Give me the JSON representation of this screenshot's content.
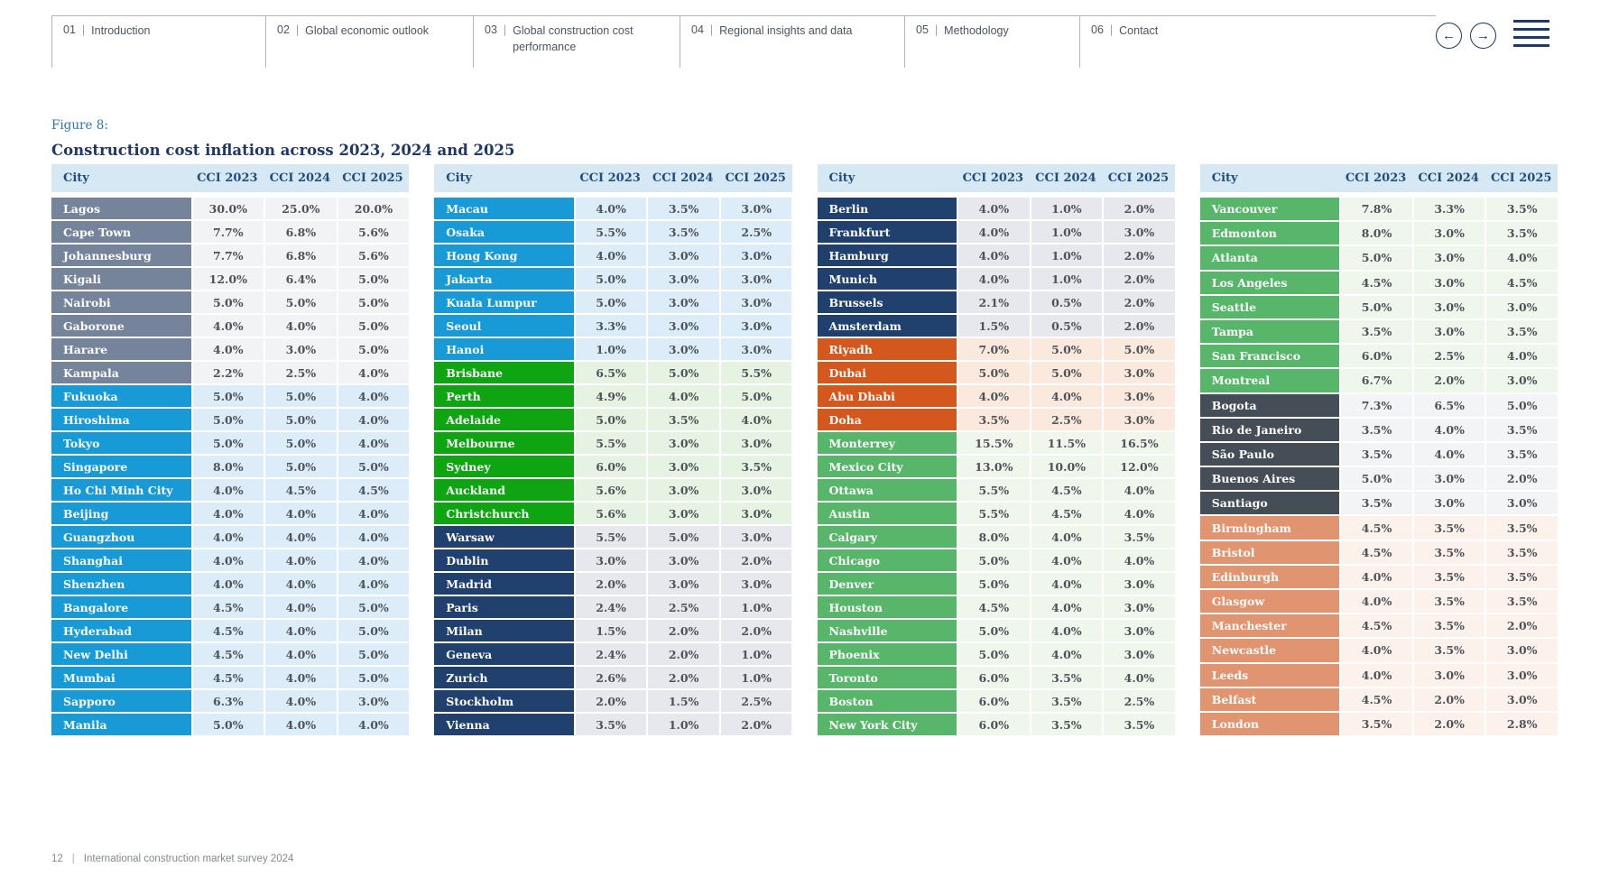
{
  "nav": {
    "items": [
      {
        "num": "01",
        "label": "Introduction"
      },
      {
        "num": "02",
        "label": "Global economic outlook"
      },
      {
        "num": "03",
        "label": "Global construction cost performance"
      },
      {
        "num": "04",
        "label": "Regional insights and data"
      },
      {
        "num": "05",
        "label": "Methodology"
      },
      {
        "num": "06",
        "label": "Contact"
      }
    ],
    "back_icon": "←",
    "forward_icon": "→",
    "accent_color": "#1f3864"
  },
  "figure": {
    "label": "Figure 8:",
    "title": "Construction cost inflation across 2023, 2024 and 2025"
  },
  "columns": [
    "City",
    "CCI 2023",
    "CCI 2024",
    "CCI 2025"
  ],
  "region_colors": {
    "africa": {
      "cell": "#75849B",
      "value_bg": "#F2F3F5"
    },
    "asia": {
      "cell": "#189AD7",
      "value_bg": "#DCEDF9"
    },
    "oceania": {
      "cell": "#0EA412",
      "value_bg": "#E6F3E2"
    },
    "europe": {
      "cell": "#20406E",
      "value_bg": "#E6E8EE"
    },
    "middle_east": {
      "cell": "#D4571E",
      "value_bg": "#FBE9DD"
    },
    "americas": {
      "cell": "#57B669",
      "value_bg": "#EFF6EC"
    },
    "south_america": {
      "cell": "#454D57",
      "value_bg": "#F2F4F5"
    },
    "uk": {
      "cell": "#E0946F",
      "value_bg": "#FCF2EB"
    }
  },
  "header_bg": "#d7e8f5",
  "tables": [
    {
      "rows": [
        {
          "city": "Lagos",
          "region": "africa",
          "values": [
            "30.0%",
            "25.0%",
            "20.0%"
          ]
        },
        {
          "city": "Cape Town",
          "region": "africa",
          "values": [
            "7.7%",
            "6.8%",
            "5.6%"
          ]
        },
        {
          "city": "Johannesburg",
          "region": "africa",
          "values": [
            "7.7%",
            "6.8%",
            "5.6%"
          ]
        },
        {
          "city": "Kigali",
          "region": "africa",
          "values": [
            "12.0%",
            "6.4%",
            "5.0%"
          ]
        },
        {
          "city": "Nairobi",
          "region": "africa",
          "values": [
            "5.0%",
            "5.0%",
            "5.0%"
          ]
        },
        {
          "city": "Gaborone",
          "region": "africa",
          "values": [
            "4.0%",
            "4.0%",
            "5.0%"
          ]
        },
        {
          "city": "Harare",
          "region": "africa",
          "values": [
            "4.0%",
            "3.0%",
            "5.0%"
          ]
        },
        {
          "city": "Kampala",
          "region": "africa",
          "values": [
            "2.2%",
            "2.5%",
            "4.0%"
          ]
        },
        {
          "city": "Fukuoka",
          "region": "asia",
          "values": [
            "5.0%",
            "5.0%",
            "4.0%"
          ]
        },
        {
          "city": "Hiroshima",
          "region": "asia",
          "values": [
            "5.0%",
            "5.0%",
            "4.0%"
          ]
        },
        {
          "city": "Tokyo",
          "region": "asia",
          "values": [
            "5.0%",
            "5.0%",
            "4.0%"
          ]
        },
        {
          "city": "Singapore",
          "region": "asia",
          "values": [
            "8.0%",
            "5.0%",
            "5.0%"
          ]
        },
        {
          "city": "Ho Chi Minh City",
          "region": "asia",
          "values": [
            "4.0%",
            "4.5%",
            "4.5%"
          ]
        },
        {
          "city": "Beijing",
          "region": "asia",
          "values": [
            "4.0%",
            "4.0%",
            "4.0%"
          ]
        },
        {
          "city": "Guangzhou",
          "region": "asia",
          "values": [
            "4.0%",
            "4.0%",
            "4.0%"
          ]
        },
        {
          "city": "Shanghai",
          "region": "asia",
          "values": [
            "4.0%",
            "4.0%",
            "4.0%"
          ]
        },
        {
          "city": "Shenzhen",
          "region": "asia",
          "values": [
            "4.0%",
            "4.0%",
            "4.0%"
          ]
        },
        {
          "city": "Bangalore",
          "region": "asia",
          "values": [
            "4.5%",
            "4.0%",
            "5.0%"
          ]
        },
        {
          "city": "Hyderabad",
          "region": "asia",
          "values": [
            "4.5%",
            "4.0%",
            "5.0%"
          ]
        },
        {
          "city": "New Delhi",
          "region": "asia",
          "values": [
            "4.5%",
            "4.0%",
            "5.0%"
          ]
        },
        {
          "city": "Mumbai",
          "region": "asia",
          "values": [
            "4.5%",
            "4.0%",
            "5.0%"
          ]
        },
        {
          "city": "Sapporo",
          "region": "asia",
          "values": [
            "6.3%",
            "4.0%",
            "3.0%"
          ]
        },
        {
          "city": "Manila",
          "region": "asia",
          "values": [
            "5.0%",
            "4.0%",
            "4.0%"
          ]
        }
      ]
    },
    {
      "rows": [
        {
          "city": "Macau",
          "region": "asia",
          "values": [
            "4.0%",
            "3.5%",
            "3.0%"
          ]
        },
        {
          "city": "Osaka",
          "region": "asia",
          "values": [
            "5.5%",
            "3.5%",
            "2.5%"
          ]
        },
        {
          "city": "Hong Kong",
          "region": "asia",
          "values": [
            "4.0%",
            "3.0%",
            "3.0%"
          ]
        },
        {
          "city": "Jakarta",
          "region": "asia",
          "values": [
            "5.0%",
            "3.0%",
            "3.0%"
          ]
        },
        {
          "city": "Kuala Lumpur",
          "region": "asia",
          "values": [
            "5.0%",
            "3.0%",
            "3.0%"
          ]
        },
        {
          "city": "Seoul",
          "region": "asia",
          "values": [
            "3.3%",
            "3.0%",
            "3.0%"
          ]
        },
        {
          "city": "Hanoi",
          "region": "asia",
          "values": [
            "1.0%",
            "3.0%",
            "3.0%"
          ]
        },
        {
          "city": "Brisbane",
          "region": "oceania",
          "values": [
            "6.5%",
            "5.0%",
            "5.5%"
          ]
        },
        {
          "city": "Perth",
          "region": "oceania",
          "values": [
            "4.9%",
            "4.0%",
            "5.0%"
          ]
        },
        {
          "city": "Adelaide",
          "region": "oceania",
          "values": [
            "5.0%",
            "3.5%",
            "4.0%"
          ]
        },
        {
          "city": "Melbourne",
          "region": "oceania",
          "values": [
            "5.5%",
            "3.0%",
            "3.0%"
          ]
        },
        {
          "city": "Sydney",
          "region": "oceania",
          "values": [
            "6.0%",
            "3.0%",
            "3.5%"
          ]
        },
        {
          "city": "Auckland",
          "region": "oceania",
          "values": [
            "5.6%",
            "3.0%",
            "3.0%"
          ]
        },
        {
          "city": "Christchurch",
          "region": "oceania",
          "values": [
            "5.6%",
            "3.0%",
            "3.0%"
          ]
        },
        {
          "city": "Warsaw",
          "region": "europe",
          "values": [
            "5.5%",
            "5.0%",
            "3.0%"
          ]
        },
        {
          "city": "Dublin",
          "region": "europe",
          "values": [
            "3.0%",
            "3.0%",
            "2.0%"
          ]
        },
        {
          "city": "Madrid",
          "region": "europe",
          "values": [
            "2.0%",
            "3.0%",
            "3.0%"
          ]
        },
        {
          "city": "Paris",
          "region": "europe",
          "values": [
            "2.4%",
            "2.5%",
            "1.0%"
          ]
        },
        {
          "city": "Milan",
          "region": "europe",
          "values": [
            "1.5%",
            "2.0%",
            "2.0%"
          ]
        },
        {
          "city": "Geneva",
          "region": "europe",
          "values": [
            "2.4%",
            "2.0%",
            "1.0%"
          ]
        },
        {
          "city": "Zurich",
          "region": "europe",
          "values": [
            "2.6%",
            "2.0%",
            "1.0%"
          ]
        },
        {
          "city": "Stockholm",
          "region": "europe",
          "values": [
            "2.0%",
            "1.5%",
            "2.5%"
          ]
        },
        {
          "city": "Vienna",
          "region": "europe",
          "values": [
            "3.5%",
            "1.0%",
            "2.0%"
          ]
        }
      ]
    },
    {
      "rows": [
        {
          "city": "Berlin",
          "region": "europe",
          "values": [
            "4.0%",
            "1.0%",
            "2.0%"
          ]
        },
        {
          "city": "Frankfurt",
          "region": "europe",
          "values": [
            "4.0%",
            "1.0%",
            "3.0%"
          ]
        },
        {
          "city": "Hamburg",
          "region": "europe",
          "values": [
            "4.0%",
            "1.0%",
            "2.0%"
          ]
        },
        {
          "city": "Munich",
          "region": "europe",
          "values": [
            "4.0%",
            "1.0%",
            "2.0%"
          ]
        },
        {
          "city": "Brussels",
          "region": "europe",
          "values": [
            "2.1%",
            "0.5%",
            "2.0%"
          ]
        },
        {
          "city": "Amsterdam",
          "region": "europe",
          "values": [
            "1.5%",
            "0.5%",
            "2.0%"
          ]
        },
        {
          "city": "Riyadh",
          "region": "middle_east",
          "values": [
            "7.0%",
            "5.0%",
            "5.0%"
          ]
        },
        {
          "city": "Dubai",
          "region": "middle_east",
          "values": [
            "5.0%",
            "5.0%",
            "3.0%"
          ]
        },
        {
          "city": "Abu Dhabi",
          "region": "middle_east",
          "values": [
            "4.0%",
            "4.0%",
            "3.0%"
          ]
        },
        {
          "city": "Doha",
          "region": "middle_east",
          "values": [
            "3.5%",
            "2.5%",
            "3.0%"
          ]
        },
        {
          "city": "Monterrey",
          "region": "americas",
          "values": [
            "15.5%",
            "11.5%",
            "16.5%"
          ]
        },
        {
          "city": "Mexico City",
          "region": "americas",
          "values": [
            "13.0%",
            "10.0%",
            "12.0%"
          ]
        },
        {
          "city": "Ottawa",
          "region": "americas",
          "values": [
            "5.5%",
            "4.5%",
            "4.0%"
          ]
        },
        {
          "city": "Austin",
          "region": "americas",
          "values": [
            "5.5%",
            "4.5%",
            "4.0%"
          ]
        },
        {
          "city": "Calgary",
          "region": "americas",
          "values": [
            "8.0%",
            "4.0%",
            "3.5%"
          ]
        },
        {
          "city": "Chicago",
          "region": "americas",
          "values": [
            "5.0%",
            "4.0%",
            "4.0%"
          ]
        },
        {
          "city": "Denver",
          "region": "americas",
          "values": [
            "5.0%",
            "4.0%",
            "3.0%"
          ]
        },
        {
          "city": "Houston",
          "region": "americas",
          "values": [
            "4.5%",
            "4.0%",
            "3.0%"
          ]
        },
        {
          "city": "Nashville",
          "region": "americas",
          "values": [
            "5.0%",
            "4.0%",
            "3.0%"
          ]
        },
        {
          "city": "Phoenix",
          "region": "americas",
          "values": [
            "5.0%",
            "4.0%",
            "3.0%"
          ]
        },
        {
          "city": "Toronto",
          "region": "americas",
          "values": [
            "6.0%",
            "3.5%",
            "4.0%"
          ]
        },
        {
          "city": "Boston",
          "region": "americas",
          "values": [
            "6.0%",
            "3.5%",
            "2.5%"
          ]
        },
        {
          "city": "New York City",
          "region": "americas",
          "values": [
            "6.0%",
            "3.5%",
            "3.5%"
          ]
        }
      ]
    },
    {
      "rows": [
        {
          "city": "Vancouver",
          "region": "americas",
          "values": [
            "7.8%",
            "3.3%",
            "3.5%"
          ]
        },
        {
          "city": "Edmonton",
          "region": "americas",
          "values": [
            "8.0%",
            "3.0%",
            "3.5%"
          ]
        },
        {
          "city": "Atlanta",
          "region": "americas",
          "values": [
            "5.0%",
            "3.0%",
            "4.0%"
          ]
        },
        {
          "city": "Los Angeles",
          "region": "americas",
          "values": [
            "4.5%",
            "3.0%",
            "4.5%"
          ]
        },
        {
          "city": "Seattle",
          "region": "americas",
          "values": [
            "5.0%",
            "3.0%",
            "3.0%"
          ]
        },
        {
          "city": "Tampa",
          "region": "americas",
          "values": [
            "3.5%",
            "3.0%",
            "3.5%"
          ]
        },
        {
          "city": "San Francisco",
          "region": "americas",
          "values": [
            "6.0%",
            "2.5%",
            "4.0%"
          ]
        },
        {
          "city": "Montreal",
          "region": "americas",
          "values": [
            "6.7%",
            "2.0%",
            "3.0%"
          ]
        },
        {
          "city": "Bogota",
          "region": "south_america",
          "values": [
            "7.3%",
            "6.5%",
            "5.0%"
          ]
        },
        {
          "city": "Rio de Janeiro",
          "region": "south_america",
          "values": [
            "3.5%",
            "4.0%",
            "3.5%"
          ]
        },
        {
          "city": "São Paulo",
          "region": "south_america",
          "values": [
            "3.5%",
            "4.0%",
            "3.5%"
          ]
        },
        {
          "city": "Buenos Aires",
          "region": "south_america",
          "values": [
            "5.0%",
            "3.0%",
            "2.0%"
          ]
        },
        {
          "city": "Santiago",
          "region": "south_america",
          "values": [
            "3.5%",
            "3.0%",
            "3.0%"
          ]
        },
        {
          "city": "Birmingham",
          "region": "uk",
          "values": [
            "4.5%",
            "3.5%",
            "3.5%"
          ]
        },
        {
          "city": "Bristol",
          "region": "uk",
          "values": [
            "4.5%",
            "3.5%",
            "3.5%"
          ]
        },
        {
          "city": "Edinburgh",
          "region": "uk",
          "values": [
            "4.0%",
            "3.5%",
            "3.5%"
          ]
        },
        {
          "city": "Glasgow",
          "region": "uk",
          "values": [
            "4.0%",
            "3.5%",
            "3.5%"
          ]
        },
        {
          "city": "Manchester",
          "region": "uk",
          "values": [
            "4.5%",
            "3.5%",
            "2.0%"
          ]
        },
        {
          "city": "Newcastle",
          "region": "uk",
          "values": [
            "4.0%",
            "3.5%",
            "3.0%"
          ]
        },
        {
          "city": "Leeds",
          "region": "uk",
          "values": [
            "4.0%",
            "3.0%",
            "3.0%"
          ]
        },
        {
          "city": "Belfast",
          "region": "uk",
          "values": [
            "4.5%",
            "2.0%",
            "3.0%"
          ]
        },
        {
          "city": "London",
          "region": "uk",
          "values": [
            "3.5%",
            "2.0%",
            "2.8%"
          ]
        }
      ]
    }
  ],
  "footer": {
    "page": "12",
    "text": "International construction market survey 2024"
  }
}
